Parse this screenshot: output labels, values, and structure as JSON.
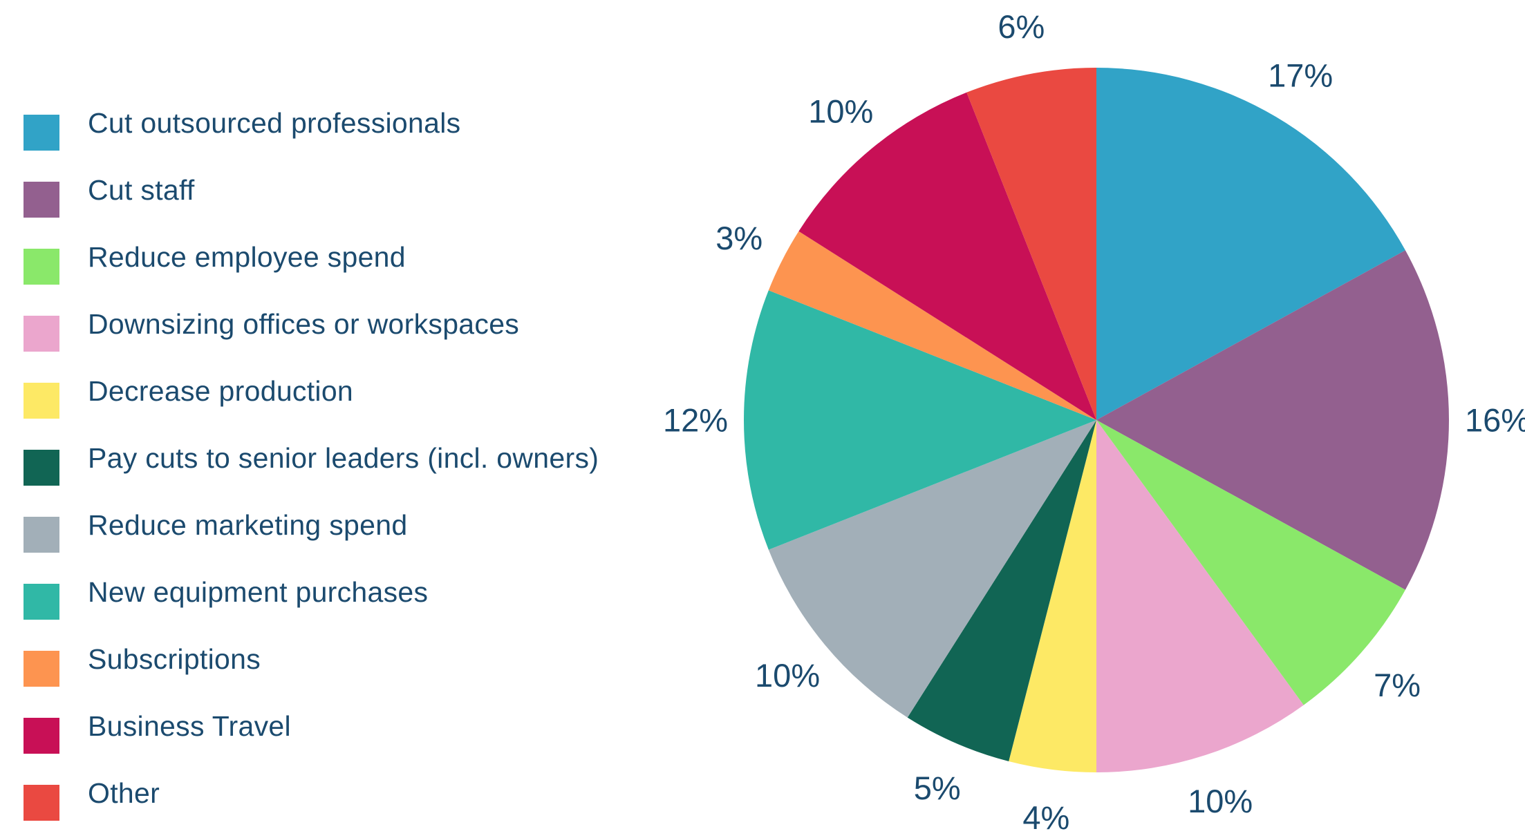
{
  "chart_data": {
    "type": "pie",
    "title": "",
    "legend_placement": "left",
    "start_angle_deg": 0,
    "direction": "clockwise",
    "categories": [
      "Cut outsourced professionals",
      "Cut staff",
      "Reduce employee spend",
      "Downsizing offices or workspaces",
      "Decrease production",
      "Pay cuts to senior leaders (incl. owners)",
      "Reduce marketing spend",
      "New equipment purchases",
      "Subscriptions",
      "Business Travel",
      "Other"
    ],
    "values": [
      17,
      16,
      7,
      10,
      4,
      5,
      10,
      12,
      3,
      10,
      6
    ],
    "value_labels": [
      "17%",
      "16%",
      "7%",
      "10%",
      "4%",
      "5%",
      "10%",
      "12%",
      "3%",
      "10%",
      "6%"
    ],
    "colors": [
      "#31a3c7",
      "#93608f",
      "#8ae86a",
      "#eba6cd",
      "#fde965",
      "#116554",
      "#a2afb8",
      "#30b8a6",
      "#fd9450",
      "#c81056",
      "#ea4941"
    ]
  }
}
